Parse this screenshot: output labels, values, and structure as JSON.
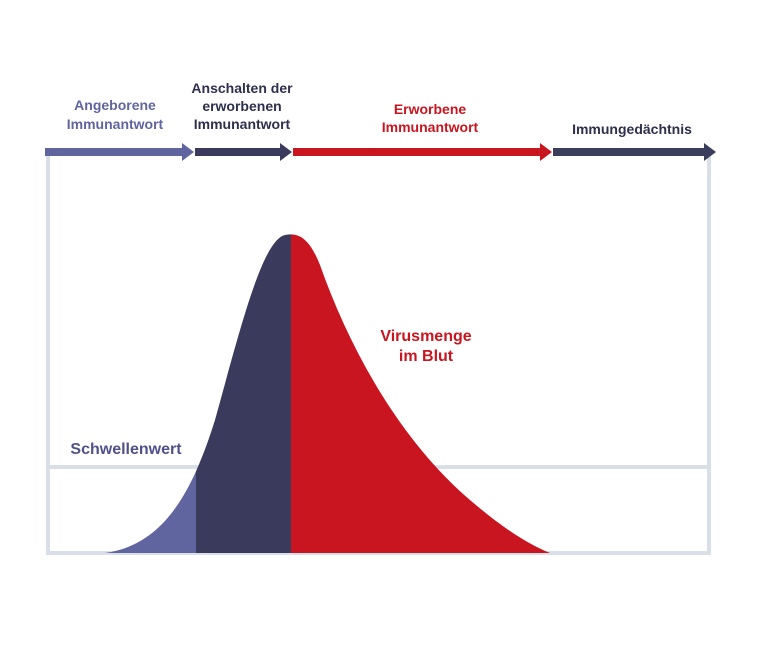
{
  "phases": [
    {
      "lines": [
        "Angeborene",
        "Immunantwort"
      ]
    },
    {
      "lines": [
        "Anschalten der",
        "erworbenen",
        "Immunantwort"
      ]
    },
    {
      "lines": [
        "Erworbene",
        "Immunantwort"
      ]
    },
    {
      "lines": [
        "Immungedächtnis"
      ]
    }
  ],
  "curve_label": {
    "lines": [
      "Virusmenge",
      "im Blut"
    ]
  },
  "threshold_label": "Schwellenwert"
}
